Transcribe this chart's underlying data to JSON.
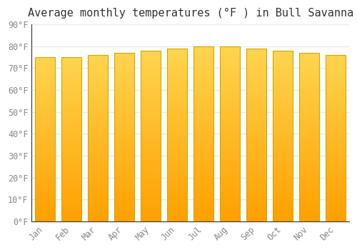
{
  "title": "Average monthly temperatures (°F ) in Bull Savanna",
  "months": [
    "Jan",
    "Feb",
    "Mar",
    "Apr",
    "May",
    "Jun",
    "Jul",
    "Aug",
    "Sep",
    "Oct",
    "Nov",
    "Dec"
  ],
  "values": [
    75,
    75,
    76,
    77,
    78,
    79,
    80,
    80,
    79,
    78,
    77,
    76
  ],
  "bar_color_top": "#FFD54F",
  "bar_color_bottom": "#FFA000",
  "background_color": "#ffffff",
  "plot_background": "#ffffff",
  "ylim": [
    0,
    90
  ],
  "yticks": [
    0,
    10,
    20,
    30,
    40,
    50,
    60,
    70,
    80,
    90
  ],
  "ytick_labels": [
    "0°F",
    "10°F",
    "20°F",
    "30°F",
    "40°F",
    "50°F",
    "60°F",
    "70°F",
    "80°F",
    "90°F"
  ],
  "title_fontsize": 11,
  "tick_fontsize": 8.5,
  "font_family": "monospace",
  "grid_color": "#e8e8f0",
  "bar_edge_color": "#ccaa00",
  "bar_width": 0.75
}
